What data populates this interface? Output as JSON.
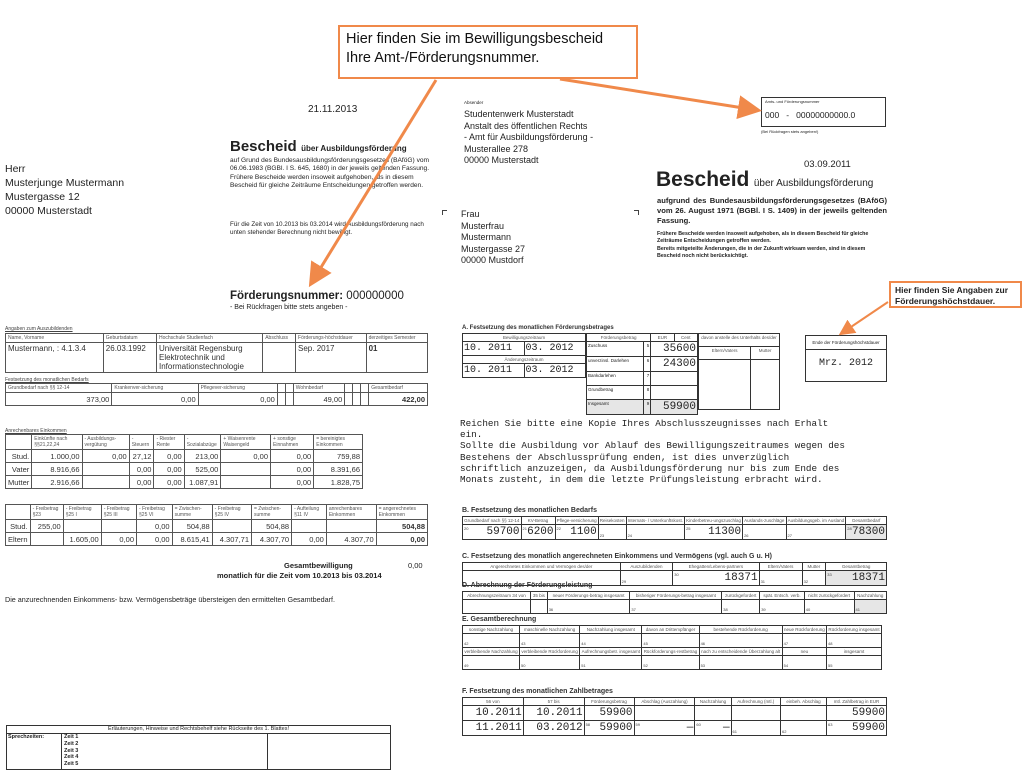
{
  "callouts": {
    "amt_nummer": "Hier finden Sie im Bewilligungsbescheid Ihre Amt-/Förderungsnummer.",
    "hoechstdauer": "Hier finden Sie Angaben zur Förderungshöchstdauer.",
    "color": "#f0894a"
  },
  "left_doc": {
    "address": [
      "Herr",
      "Musterjunge Mustermann",
      "Mustergasse 12",
      "",
      "00000 Musterstadt"
    ],
    "date": "21.11.2013",
    "title": "Bescheid",
    "title_suffix": "über Ausbildungsförderung",
    "intro": "auf Grund des Bundesausbildungsförderungsgesetzes (BAföG) vom 06.06.1983 (BGBl. I S. 645, 1680) in der jeweils geltenden Fassung.\nFrühere Bescheide werden insoweit aufgehoben, als in diesem Bescheid für gleiche Zeiträume Entscheidungen getroffen werden.",
    "period_text": "Für die Zeit von 10.2013 bis 03.2014 wird Ausbildungsförderung nach unten stehender Berechnung nicht bewilligt.",
    "foerderungsnummer_label": "Förderungsnummer:",
    "foerderungsnummer": "000000000",
    "foerderungsnummer_note": "- Bei Rückfragen bitte stets angeben -",
    "tables": [
      {
        "label": "Angaben zum Auszubildenden",
        "header": [
          "Name, Vorname",
          "Geburtsdatum",
          "Hochschule Studienfach",
          "Abschluss",
          "Förderungs-höchstdauer",
          "derzeitiges Semester"
        ],
        "rows": [
          [
            "Mustermann,      : 4.1.3.4",
            "26.03.1992",
            "Universität Regensburg\nElektrotechnik und\nInformationstechnologie",
            "",
            "Sep. 2017",
            "01"
          ]
        ]
      },
      {
        "label": "Festsetzung des monatlichen Bedarfs",
        "header": [
          "Grundbedarf nach §§ 12-14",
          "Krankenver-sicherung",
          "Pflegever-sicherung",
          "",
          "",
          "Wohnbedarf",
          "",
          "",
          "",
          "Gesamtbedarf"
        ],
        "rows": [
          [
            "373,00",
            "0,00",
            "0,00",
            "",
            "",
            "49,00",
            "",
            "",
            "",
            "422,00"
          ]
        ]
      },
      {
        "label": "Anrechenbares Einkommen",
        "header": [
          "",
          "Einkünfte nach §§21,22,24",
          "- Ausbildungs-vergütung",
          "- Steuern",
          "- Riester Rente",
          "- Sozialabzüge",
          "+ Waisenrente Waisengeld",
          "+ sonstige Einnahmen",
          "= bereinigtes Einkommen"
        ],
        "rows": [
          [
            "Stud.",
            "1.000,00",
            "0,00",
            "27,12",
            "0,00",
            "213,00",
            "0,00",
            "0,00",
            "759,88"
          ],
          [
            "Vater",
            "8.916,66",
            "",
            "0,00",
            "0,00",
            "525,00",
            "",
            "0,00",
            "8.391,66"
          ],
          [
            "Mutter",
            "2.916,66",
            "",
            "0,00",
            "0,00",
            "1.087,91",
            "",
            "0,00",
            "1.828,75"
          ]
        ]
      },
      {
        "label": "",
        "header": [
          "",
          "- Freibetrag §23",
          "- Freibetrag §25 I",
          "- Freibetrag §25 III",
          "- Freibetrag §25 VI",
          "= Zwischen-summe",
          "- Freibetrag §25 IV",
          "= Zwischen-summe",
          "- Aufteilung §11 IV",
          "anrechenbares Einkommen",
          "= angerechnetes Einkommen"
        ],
        "rows": [
          [
            "Stud.",
            "255,00",
            "",
            "",
            "0,00",
            "504,88",
            "",
            "504,88",
            "",
            "",
            "504,88"
          ],
          [
            "Eltern",
            "",
            "1.605,00",
            "0,00",
            "0,00",
            "8.615,41",
            "4.307,71",
            "4.307,70",
            "0,00",
            "4.307,70",
            "0,00"
          ]
        ]
      }
    ],
    "gesamtbewilligung_label": "Gesamtbewilligung",
    "gesamtbewilligung_value": "0,00",
    "gesamtbewilligung_period": "monatlich für die Zeit vom 10.2013 bis 03.2014",
    "notice": "Die anzurechnenden Einkommens- bzw. Vermögensbeträge übersteigen den ermittelten Gesamtbedarf.",
    "footer": {
      "title": "Erläuterungen, Hinweise und Rechtsbehelf siehe Rückseite des 1. Blattes!",
      "label": "Sprechzeiten:",
      "times": [
        "Zeit 1",
        "Zeit 2",
        "Zeit 3",
        "Zeit 4",
        "Zeit 5"
      ]
    }
  },
  "right_doc": {
    "sender_label": "Absender",
    "sender": [
      "Studentenwerk Musterstadt",
      "Anstalt des öffentlichen Rechts",
      "- Amt für Ausbildungsförderung -",
      "Musterallee 278",
      "",
      "00000 Musterstadt"
    ],
    "recipient": [
      "Frau",
      "Musterfrau",
      "Mustermann",
      "Mustergasse 27",
      "",
      "00000 Mustdorf"
    ],
    "amt_box_label": "Amts- und Förderungsnummer",
    "amt_number": "000   -   00000000000.0",
    "amt_box_note": "(Bei Rückfragen stets angeben!)",
    "date": "03.09.2011",
    "title": "Bescheid",
    "title_suffix": "über Ausbildungsförderung",
    "intro": "aufgrund des Bundesausbildungsförderungsgesetzes (BAföG) vom 26. August 1971 (BGBl. I S. 1409) in der jeweils geltenden Fassung.",
    "intro2": "Frühere Bescheide werden insoweit aufgehoben, als in diesem Bescheid für gleiche Zeiträume Entscheidungen getroffen werden.\nBereits mitgeteilte Änderungen, die in der Zukunft wirksam werden, sind in diesem Bescheid noch nicht berücksichtigt.",
    "section_a": {
      "title": "A. Festsetzung des monatlichen Förderungsbetrages",
      "bewilligung_label": "Bewilligungszeitraum",
      "von": "von",
      "bis": "bis",
      "bew_von": "10. 2011",
      "bew_bis": "03. 2012",
      "aenderung_label": "Änderungszeitraum",
      "aend_von": "10. 2011",
      "aend_bis": "03. 2012",
      "betrag_label": "Förderungsbetrag",
      "eur": "EUR",
      "cent": "Cent",
      "rows": [
        {
          "label": "Zuschuss",
          "no": "5",
          "value": "35600"
        },
        {
          "label": "unverzinsl. Darlehen",
          "no": "6",
          "value": "24300"
        },
        {
          "label": "Bankdarlehen",
          "no": "7",
          "value": ""
        },
        {
          "label": "Grundbetrag",
          "no": "8",
          "value": ""
        },
        {
          "label": "Insgesamt",
          "no": "9",
          "value": "59900"
        }
      ],
      "unterhalt_label": "davon anstelle des Unterhalts des/der",
      "eltern_label": "Eltern/Vaters",
      "mutter_label": "Mutter",
      "ende_label": "Ende der Förderungshöchstdauer",
      "ende_value": "Mrz. 2012"
    },
    "message": "Reichen Sie bitte eine Kopie Ihres Abschlusszeugnisses nach Erhalt\nein.\nSollte die Ausbildung vor Ablauf des Bewilligungszeitraumes wegen des\nBestehens der Abschlussprüfung enden, ist dies unverzüglich\nschriftlich anzuzeigen, da Ausbildungsförderung nur bis zum Ende des\nMonats zusteht, in dem die letzte Prüfungsleistung erbracht wird.",
    "forms": [
      {
        "title": "B. Festsetzung des monatlichen Bedarfs",
        "header": [
          "Grundbedarf nach §§ 12-14",
          "KV-Betrag",
          "Pflege-versicherung",
          "Reisekosten",
          "Internats- / Unterkunftskost.",
          "Kinderbetreu-ungszuschlag",
          "Auslands-zuschläge",
          "Ausbildungsgeb. im Ausland",
          "Gesamtbedarf"
        ],
        "rows": [
          [
            [
              "20",
              "59700"
            ],
            [
              "21",
              "6200"
            ],
            [
              "22",
              "1100"
            ],
            [
              "23",
              ""
            ],
            [
              "24",
              ""
            ],
            [
              "25",
              "11300"
            ],
            [
              "26",
              ""
            ],
            [
              "27",
              ""
            ],
            [
              "28",
              "78300"
            ]
          ]
        ]
      },
      {
        "title": "C. Festsetzung des monatlich angerechneten Einkommens und Vermögens (vgl. auch G u. H)",
        "header": [
          "Angerechnetes Einkommen und Vermögen des/der",
          "Auszubildenden",
          "Ehegatten/Lebens-partners",
          "Eltern/Vaters",
          "Mutter",
          "Gesamtbetrag"
        ],
        "rows": [
          [
            [
              "",
              ""
            ],
            [
              "29",
              ""
            ],
            [
              "30",
              "18371"
            ],
            [
              "31",
              ""
            ],
            [
              "32",
              ""
            ],
            [
              "33",
              "18371"
            ]
          ]
        ]
      },
      {
        "title": "D. Abrechnung der Förderungsleistung",
        "header": [
          "Abrechnungszeitraum 34 von",
          "35 bis",
          "neuer Förderungs-betrag insgesamt",
          "bisheriger Förderungs-betrag insgesamt",
          "zurückgefordert",
          "spät. Entsch. verb.",
          "nicht zurückgefordert",
          "Nachzahlung"
        ],
        "rows": [
          [
            [
              "",
              ""
            ],
            [
              "",
              ""
            ],
            [
              "36",
              ""
            ],
            [
              "37",
              ""
            ],
            [
              "38",
              ""
            ],
            [
              "39",
              ""
            ],
            [
              "40",
              ""
            ],
            [
              "41",
              ""
            ]
          ]
        ]
      },
      {
        "title": "E. Gesamtberechnung",
        "header": [
          "sonstige Nachzahlung",
          "maschinelle Nachzahlung",
          "Nachzahlung insgesamt",
          "davon an Drittempfänger",
          "bestehende Rückforderung",
          "neue Rückforderung",
          "Rückforderung insgesamt"
        ],
        "rows": [
          [
            [
              "42",
              ""
            ],
            [
              "43",
              ""
            ],
            [
              "44",
              ""
            ],
            [
              "45",
              ""
            ],
            [
              "46",
              ""
            ],
            [
              "47",
              ""
            ],
            [
              "48",
              ""
            ]
          ]
        ],
        "header2": [
          "verbleibende Nachzahlung",
          "verbleibende Rückforderung",
          "Aufrechnungsbetr. insgesamt",
          "Rückforderungs-restbetrag",
          "nach zu entscheidende Überzahlung alt",
          "neu",
          "insgesamt"
        ],
        "rows2": [
          [
            [
              "49",
              ""
            ],
            [
              "50",
              ""
            ],
            [
              "51",
              ""
            ],
            [
              "52",
              ""
            ],
            [
              "53",
              ""
            ],
            [
              "54",
              ""
            ],
            [
              "55",
              ""
            ]
          ]
        ]
      },
      {
        "title": "F. Festsetzung des monatlichen Zahlbetrages",
        "header": [
          "56 von",
          "57 bis",
          "Förderungsbetrag",
          "Abschlag (Auszahlung)",
          "Nachzahlung",
          "Aufrechnung (mtl.)",
          "einbeh. Abschlag",
          "mtl. Zahlbetrag in EUR"
        ],
        "rows": [
          [
            [
              "",
              "10.2011"
            ],
            [
              "",
              "10.2011"
            ],
            [
              "",
              "59900"
            ],
            [
              "",
              ""
            ],
            [
              "",
              ""
            ],
            [
              "",
              ""
            ],
            [
              "",
              ""
            ],
            [
              "",
              "59900"
            ]
          ],
          [
            [
              "",
              "11.2011"
            ],
            [
              "",
              "03.2012"
            ],
            [
              "58",
              "59900"
            ],
            [
              "59",
              "—"
            ],
            [
              "60",
              "—"
            ],
            [
              "61",
              ""
            ],
            [
              "62",
              ""
            ],
            [
              "63",
              "59900"
            ]
          ]
        ]
      }
    ]
  }
}
